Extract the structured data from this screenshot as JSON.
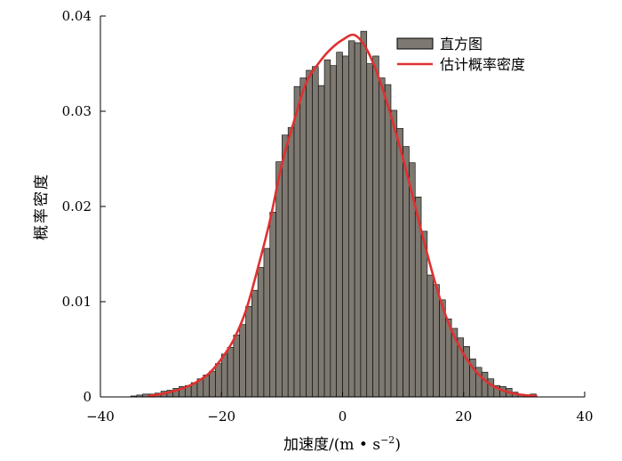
{
  "chart_data": {
    "type": "bar",
    "title": "",
    "xlabel": "加速度/(m • s",
    "xlabel_sup": "−2",
    "xlabel_close": ")",
    "ylabel": "概率密度",
    "xlim": [
      -40,
      40
    ],
    "ylim": [
      0,
      0.04
    ],
    "xticks": [
      -40,
      -20,
      0,
      20,
      40
    ],
    "xtick_labels": [
      "−40",
      "−20",
      "0",
      "20",
      "40"
    ],
    "yticks": [
      0,
      0.01,
      0.02,
      0.03,
      0.04
    ],
    "ytick_labels": [
      "0",
      "0.01",
      "0.02",
      "0.03",
      "0.04"
    ],
    "grid": false,
    "legend_position": "top-right",
    "bin_width": 1,
    "series": [
      {
        "name": "直方图",
        "kind": "histogram",
        "color": "#7d7870",
        "bin_start": [
          -35,
          -34,
          -33,
          -32,
          -31,
          -30,
          -29,
          -28,
          -27,
          -26,
          -25,
          -24,
          -23,
          -22,
          -21,
          -20,
          -19,
          -18,
          -17,
          -16,
          -15,
          -14,
          -13,
          -12,
          -11,
          -10,
          -9,
          -8,
          -7,
          -6,
          -5,
          -4,
          -3,
          -2,
          -1,
          0,
          1,
          2,
          3,
          4,
          5,
          6,
          7,
          8,
          9,
          10,
          11,
          12,
          13,
          14,
          15,
          16,
          17,
          18,
          19,
          20,
          21,
          22,
          23,
          24,
          25,
          26,
          27,
          28,
          29,
          30,
          31
        ],
        "values": [
          0.0001,
          0.0002,
          0.0003,
          0.0003,
          0.0004,
          0.0006,
          0.0007,
          0.0009,
          0.0011,
          0.0012,
          0.0015,
          0.0019,
          0.0023,
          0.0027,
          0.0035,
          0.0045,
          0.0052,
          0.0065,
          0.0076,
          0.0095,
          0.0112,
          0.0136,
          0.0156,
          0.0194,
          0.0247,
          0.0275,
          0.0283,
          0.0326,
          0.0335,
          0.0343,
          0.0347,
          0.0327,
          0.0354,
          0.0348,
          0.0362,
          0.0358,
          0.0374,
          0.0372,
          0.0384,
          0.035,
          0.0358,
          0.0335,
          0.0328,
          0.0301,
          0.0282,
          0.0263,
          0.0246,
          0.021,
          0.0174,
          0.0128,
          0.0118,
          0.0102,
          0.0082,
          0.0072,
          0.0062,
          0.0053,
          0.004,
          0.0031,
          0.0026,
          0.0019,
          0.0012,
          0.0011,
          0.0009,
          0.0005,
          0.0003,
          0.0002,
          0.0003
        ]
      },
      {
        "name": "估计概率密度",
        "kind": "line",
        "color": "#e03030",
        "x": [
          -32,
          -30,
          -28,
          -26,
          -24,
          -22,
          -20,
          -18,
          -16,
          -14,
          -12,
          -10,
          -8,
          -6,
          -4,
          -2,
          0,
          2,
          4,
          6,
          8,
          10,
          12,
          14,
          16,
          18,
          20,
          22,
          24,
          26,
          28,
          30,
          32
        ],
        "y": [
          0.0001,
          0.0003,
          0.0006,
          0.001,
          0.0016,
          0.0025,
          0.004,
          0.006,
          0.009,
          0.0135,
          0.0185,
          0.0245,
          0.029,
          0.033,
          0.035,
          0.0365,
          0.0375,
          0.038,
          0.0365,
          0.0335,
          0.0295,
          0.025,
          0.02,
          0.015,
          0.0105,
          0.007,
          0.0045,
          0.0027,
          0.0015,
          0.0008,
          0.0004,
          0.0002,
          0.0001
        ]
      }
    ]
  }
}
